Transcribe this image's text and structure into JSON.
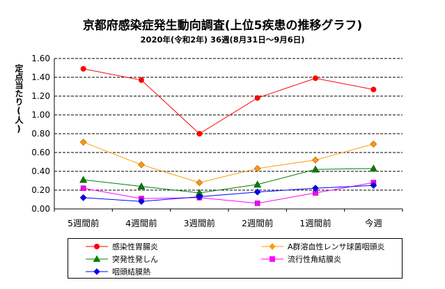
{
  "header": {
    "title": "京都府感染症発生動向調査(上位5疾患の推移グラフ)",
    "subtitle": "2020年(令和2年) 36週(8月31日～9月6日)"
  },
  "chart_data": {
    "type": "line",
    "ylabel": "定点当たり(人)",
    "categories": [
      "5週間前",
      "4週間前",
      "3週間前",
      "2週間前",
      "1週間前",
      "今週"
    ],
    "ylim": [
      0,
      1.6
    ],
    "yticks": [
      "0.00",
      "0.20",
      "0.40",
      "0.60",
      "0.80",
      "1.00",
      "1.20",
      "1.40",
      "1.60"
    ],
    "grid": "horizontal dashed",
    "legend_position": "bottom",
    "series": [
      {
        "name": "感染性胃腸炎",
        "values": [
          1.49,
          1.37,
          0.8,
          1.18,
          1.39,
          1.27
        ],
        "color": "#ff0000",
        "marker": "circle"
      },
      {
        "name": "A群溶血性レンサ球菌咽頭炎",
        "values": [
          0.71,
          0.47,
          0.28,
          0.43,
          0.52,
          0.69
        ],
        "color": "#ff9900",
        "marker": "diamond"
      },
      {
        "name": "突発性発しん",
        "values": [
          0.31,
          0.24,
          0.17,
          0.26,
          0.42,
          0.43
        ],
        "color": "#008000",
        "marker": "triangle"
      },
      {
        "name": "流行性角結膜炎",
        "values": [
          0.22,
          0.11,
          0.12,
          0.06,
          0.17,
          0.28
        ],
        "color": "#ff00ff",
        "marker": "square"
      },
      {
        "name": "咽頭結膜熱",
        "values": [
          0.12,
          0.08,
          0.13,
          0.18,
          0.22,
          0.25
        ],
        "color": "#0000ff",
        "marker": "diamond"
      }
    ]
  }
}
